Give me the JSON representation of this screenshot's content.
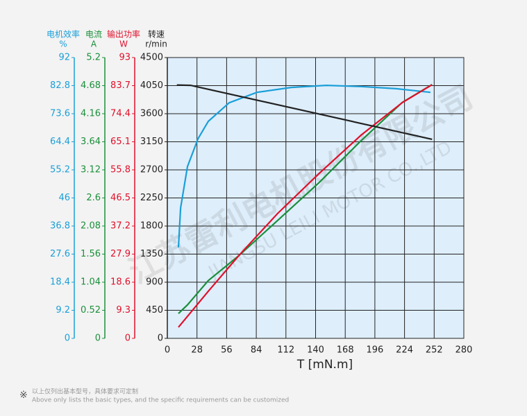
{
  "chart_data": {
    "type": "line",
    "y_axes": [
      {
        "title": "电机效率",
        "unit": "%",
        "color": "#1a9fd8",
        "ylim": [
          0,
          92
        ],
        "yticks": [
          0,
          9.2,
          18.4,
          27.6,
          36.8,
          46,
          55.2,
          64.4,
          73.6,
          82.8,
          92
        ]
      },
      {
        "title": "电流",
        "unit": "A",
        "color": "#1a8f3a",
        "ylim": [
          0,
          5.2
        ],
        "yticks": [
          0,
          0.52,
          1.04,
          1.56,
          2.08,
          2.6,
          3.12,
          3.64,
          4.16,
          4.68,
          5.2
        ]
      },
      {
        "title": "输出功率",
        "unit": "W",
        "color": "#e0102a",
        "ylim": [
          0,
          93
        ],
        "yticks": [
          0,
          9.3,
          18.6,
          27.9,
          37.2,
          46.5,
          55.8,
          65.1,
          74.4,
          83.7,
          93
        ]
      },
      {
        "title": "转速",
        "unit": "r/min",
        "color": "#222222",
        "ylim": [
          0,
          4500
        ],
        "yticks": [
          0,
          450,
          900,
          1350,
          1800,
          2250,
          2700,
          3150,
          3600,
          4050,
          4500
        ]
      }
    ],
    "xlim": [
      0,
      280
    ],
    "xticks": [
      0,
      28,
      56,
      84,
      112,
      140,
      168,
      196,
      224,
      252,
      280
    ],
    "xlabel": "T [mN.m]",
    "grid": true,
    "series": [
      {
        "axis": 0,
        "color": "#1a9fd8",
        "x": [
          10.5,
          12.5,
          19,
          29,
          38.7,
          58.4,
          84.6,
          117,
          150,
          183,
          216,
          248.5
        ],
        "values": [
          29.8,
          42.7,
          56.3,
          65.4,
          71.1,
          77.2,
          80.6,
          82.2,
          82.9,
          82.5,
          81.8,
          80.6
        ]
      },
      {
        "axis": 1,
        "color": "#1a8f3a",
        "x": [
          10.5,
          19,
          38.7,
          68,
          104,
          143.6,
          183,
          222,
          250
        ],
        "values": [
          0.46,
          0.62,
          1.07,
          1.54,
          2.18,
          2.89,
          3.66,
          4.37,
          4.7
        ]
      },
      {
        "axis": 2,
        "color": "#e0102a",
        "x": [
          10.5,
          38.7,
          68,
          104,
          143.6,
          183,
          222,
          250
        ],
        "values": [
          3.7,
          15.6,
          27.6,
          41.3,
          54.7,
          67.3,
          78.1,
          84.0
        ]
      },
      {
        "axis": 3,
        "color": "#222222",
        "x": [
          9,
          22,
          250
        ],
        "values": [
          4060,
          4055,
          3190
        ]
      }
    ],
    "watermark": [
      "江苏雷利电机股份有限公司",
      "JIANGSU LEILI MOTOR CO.,LTD"
    ]
  },
  "footnote": {
    "mark": "※",
    "zh": "以上仅列出基本型号，具体要求可定制",
    "en": "Above only lists the basic types, and the specific requirements can be customized"
  }
}
